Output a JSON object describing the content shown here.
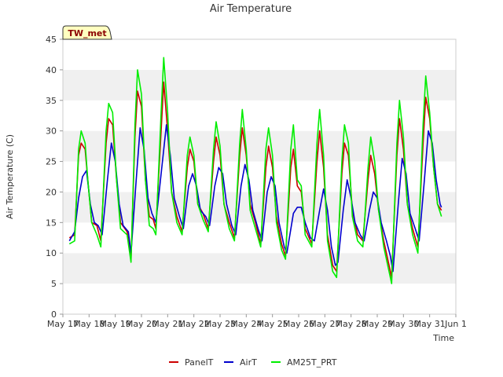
{
  "chart_data": {
    "type": "line",
    "title": "Air Temperature",
    "xlabel": "Time",
    "ylabel": "Air Temperature (C)",
    "tag": "TW_met",
    "ylim": [
      0,
      45
    ],
    "yticks": [
      0,
      5,
      10,
      15,
      20,
      25,
      30,
      35,
      40,
      45
    ],
    "xlim": [
      0,
      15
    ],
    "xticks": [
      {
        "x": 0,
        "label": "May 17"
      },
      {
        "x": 1,
        "label": "May 18"
      },
      {
        "x": 2,
        "label": "May 19"
      },
      {
        "x": 3,
        "label": "May 20"
      },
      {
        "x": 4,
        "label": "May 21"
      },
      {
        "x": 5,
        "label": "May 22"
      },
      {
        "x": 6,
        "label": "May 23"
      },
      {
        "x": 7,
        "label": "May 24"
      },
      {
        "x": 8,
        "label": "May 25"
      },
      {
        "x": 9,
        "label": "May 26"
      },
      {
        "x": 10,
        "label": "May 27"
      },
      {
        "x": 11,
        "label": "May 28"
      },
      {
        "x": 12,
        "label": "May 29"
      },
      {
        "x": 13,
        "label": "May 30"
      },
      {
        "x": 14,
        "label": "May 31"
      },
      {
        "x": 15,
        "label": "Jun 1"
      }
    ],
    "grid": true,
    "legend_position": "bottom",
    "series": [
      {
        "name": "PanelT",
        "color": "#cc0000",
        "points": [
          [
            0.25,
            12.5
          ],
          [
            0.45,
            13.0
          ],
          [
            0.6,
            26.0
          ],
          [
            0.7,
            28.0
          ],
          [
            0.85,
            27.0
          ],
          [
            0.95,
            22.0
          ],
          [
            1.1,
            15.0
          ],
          [
            1.3,
            14.5
          ],
          [
            1.45,
            12.0
          ],
          [
            1.65,
            28.0
          ],
          [
            1.75,
            32.0
          ],
          [
            1.9,
            31.0
          ],
          [
            2.05,
            22.0
          ],
          [
            2.2,
            15.0
          ],
          [
            2.45,
            13.5
          ],
          [
            2.6,
            9.0
          ],
          [
            2.75,
            29.0
          ],
          [
            2.85,
            36.5
          ],
          [
            3.0,
            34.0
          ],
          [
            3.15,
            22.0
          ],
          [
            3.3,
            16.0
          ],
          [
            3.45,
            15.5
          ],
          [
            3.55,
            14.0
          ],
          [
            3.75,
            30.0
          ],
          [
            3.85,
            38.0
          ],
          [
            4.0,
            30.0
          ],
          [
            4.15,
            20.0
          ],
          [
            4.35,
            16.0
          ],
          [
            4.55,
            13.5
          ],
          [
            4.75,
            24.0
          ],
          [
            4.85,
            27.0
          ],
          [
            5.0,
            25.0
          ],
          [
            5.15,
            18.0
          ],
          [
            5.35,
            16.5
          ],
          [
            5.55,
            14.0
          ],
          [
            5.75,
            25.0
          ],
          [
            5.85,
            29.0
          ],
          [
            6.0,
            26.0
          ],
          [
            6.15,
            18.0
          ],
          [
            6.35,
            15.0
          ],
          [
            6.55,
            12.5
          ],
          [
            6.75,
            26.0
          ],
          [
            6.85,
            30.5
          ],
          [
            7.0,
            26.0
          ],
          [
            7.15,
            18.0
          ],
          [
            7.35,
            15.0
          ],
          [
            7.55,
            11.5
          ],
          [
            7.75,
            24.0
          ],
          [
            7.85,
            27.5
          ],
          [
            8.0,
            24.0
          ],
          [
            8.15,
            16.0
          ],
          [
            8.35,
            11.5
          ],
          [
            8.5,
            9.5
          ],
          [
            8.7,
            24.0
          ],
          [
            8.8,
            27.0
          ],
          [
            8.95,
            21.0
          ],
          [
            9.1,
            20.0
          ],
          [
            9.25,
            14.0
          ],
          [
            9.5,
            11.5
          ],
          [
            9.7,
            25.0
          ],
          [
            9.8,
            30.0
          ],
          [
            9.95,
            24.0
          ],
          [
            10.1,
            13.0
          ],
          [
            10.3,
            8.0
          ],
          [
            10.45,
            7.0
          ],
          [
            10.65,
            23.0
          ],
          [
            10.75,
            28.0
          ],
          [
            10.9,
            26.0
          ],
          [
            11.05,
            17.0
          ],
          [
            11.25,
            13.0
          ],
          [
            11.45,
            12.0
          ],
          [
            11.65,
            22.0
          ],
          [
            11.75,
            26.0
          ],
          [
            11.9,
            23.0
          ],
          [
            12.05,
            17.0
          ],
          [
            12.25,
            12.0
          ],
          [
            12.45,
            8.0
          ],
          [
            12.55,
            6.0
          ],
          [
            12.75,
            26.0
          ],
          [
            12.85,
            32.0
          ],
          [
            13.0,
            27.0
          ],
          [
            13.15,
            18.0
          ],
          [
            13.35,
            14.0
          ],
          [
            13.55,
            11.0
          ],
          [
            13.75,
            28.0
          ],
          [
            13.85,
            35.5
          ],
          [
            14.0,
            32.0
          ],
          [
            14.15,
            24.0
          ],
          [
            14.3,
            18.0
          ],
          [
            14.45,
            17.0
          ]
        ]
      },
      {
        "name": "AirT",
        "color": "#0000cc",
        "points": [
          [
            0.25,
            12.0
          ],
          [
            0.45,
            13.5
          ],
          [
            0.6,
            19.0
          ],
          [
            0.75,
            22.5
          ],
          [
            0.9,
            23.5
          ],
          [
            1.05,
            18.0
          ],
          [
            1.2,
            15.0
          ],
          [
            1.35,
            14.5
          ],
          [
            1.5,
            13.0
          ],
          [
            1.7,
            22.0
          ],
          [
            1.85,
            28.0
          ],
          [
            2.0,
            25.0
          ],
          [
            2.15,
            18.0
          ],
          [
            2.3,
            14.5
          ],
          [
            2.5,
            13.5
          ],
          [
            2.6,
            10.0
          ],
          [
            2.8,
            22.0
          ],
          [
            2.95,
            30.5
          ],
          [
            3.1,
            27.0
          ],
          [
            3.25,
            19.0
          ],
          [
            3.4,
            16.5
          ],
          [
            3.55,
            15.0
          ],
          [
            3.8,
            25.0
          ],
          [
            3.95,
            31.0
          ],
          [
            4.1,
            26.0
          ],
          [
            4.25,
            19.0
          ],
          [
            4.45,
            16.0
          ],
          [
            4.6,
            14.0
          ],
          [
            4.8,
            21.0
          ],
          [
            4.95,
            23.0
          ],
          [
            5.1,
            21.0
          ],
          [
            5.25,
            17.0
          ],
          [
            5.45,
            16.0
          ],
          [
            5.6,
            14.5
          ],
          [
            5.8,
            21.0
          ],
          [
            5.95,
            24.0
          ],
          [
            6.1,
            23.0
          ],
          [
            6.25,
            18.0
          ],
          [
            6.45,
            14.5
          ],
          [
            6.6,
            13.0
          ],
          [
            6.8,
            21.0
          ],
          [
            6.95,
            24.5
          ],
          [
            7.1,
            22.0
          ],
          [
            7.25,
            17.0
          ],
          [
            7.45,
            14.0
          ],
          [
            7.6,
            12.0
          ],
          [
            7.8,
            20.0
          ],
          [
            7.95,
            22.5
          ],
          [
            8.1,
            21.0
          ],
          [
            8.25,
            15.0
          ],
          [
            8.45,
            11.0
          ],
          [
            8.55,
            10.0
          ],
          [
            8.8,
            16.5
          ],
          [
            8.95,
            17.5
          ],
          [
            9.1,
            17.5
          ],
          [
            9.25,
            15.0
          ],
          [
            9.45,
            12.5
          ],
          [
            9.6,
            12.0
          ],
          [
            9.8,
            17.0
          ],
          [
            9.95,
            20.5
          ],
          [
            10.1,
            17.0
          ],
          [
            10.25,
            11.0
          ],
          [
            10.4,
            8.0
          ],
          [
            10.5,
            8.5
          ],
          [
            10.7,
            17.0
          ],
          [
            10.85,
            22.0
          ],
          [
            11.0,
            19.0
          ],
          [
            11.15,
            15.0
          ],
          [
            11.35,
            13.0
          ],
          [
            11.5,
            12.0
          ],
          [
            11.7,
            17.0
          ],
          [
            11.85,
            20.0
          ],
          [
            12.0,
            19.0
          ],
          [
            12.15,
            15.0
          ],
          [
            12.35,
            12.0
          ],
          [
            12.5,
            9.5
          ],
          [
            12.6,
            7.0
          ],
          [
            12.8,
            18.0
          ],
          [
            12.95,
            25.5
          ],
          [
            13.1,
            23.0
          ],
          [
            13.25,
            16.5
          ],
          [
            13.45,
            14.0
          ],
          [
            13.6,
            12.0
          ],
          [
            13.8,
            22.0
          ],
          [
            13.95,
            30.0
          ],
          [
            14.1,
            28.0
          ],
          [
            14.25,
            22.0
          ],
          [
            14.4,
            18.0
          ],
          [
            14.45,
            17.5
          ]
        ]
      },
      {
        "name": "AM25T_PRT",
        "color": "#00ee00",
        "points": [
          [
            0.25,
            11.5
          ],
          [
            0.45,
            12.0
          ],
          [
            0.6,
            27.0
          ],
          [
            0.7,
            30.0
          ],
          [
            0.85,
            28.0
          ],
          [
            0.95,
            22.0
          ],
          [
            1.1,
            15.0
          ],
          [
            1.3,
            13.0
          ],
          [
            1.45,
            11.0
          ],
          [
            1.65,
            30.0
          ],
          [
            1.75,
            34.5
          ],
          [
            1.9,
            33.0
          ],
          [
            2.05,
            22.0
          ],
          [
            2.2,
            14.0
          ],
          [
            2.45,
            13.0
          ],
          [
            2.6,
            8.5
          ],
          [
            2.75,
            31.0
          ],
          [
            2.85,
            40.0
          ],
          [
            3.0,
            36.0
          ],
          [
            3.15,
            22.0
          ],
          [
            3.3,
            14.5
          ],
          [
            3.45,
            14.0
          ],
          [
            3.55,
            13.0
          ],
          [
            3.75,
            33.0
          ],
          [
            3.85,
            42.0
          ],
          [
            4.0,
            33.0
          ],
          [
            4.15,
            20.0
          ],
          [
            4.35,
            15.0
          ],
          [
            4.55,
            13.0
          ],
          [
            4.75,
            26.0
          ],
          [
            4.85,
            29.0
          ],
          [
            5.0,
            26.0
          ],
          [
            5.15,
            18.0
          ],
          [
            5.35,
            15.5
          ],
          [
            5.55,
            13.5
          ],
          [
            5.75,
            27.0
          ],
          [
            5.85,
            31.5
          ],
          [
            6.0,
            27.5
          ],
          [
            6.15,
            18.0
          ],
          [
            6.35,
            14.0
          ],
          [
            6.55,
            12.0
          ],
          [
            6.75,
            28.0
          ],
          [
            6.85,
            33.5
          ],
          [
            7.0,
            27.0
          ],
          [
            7.15,
            17.0
          ],
          [
            7.35,
            14.0
          ],
          [
            7.55,
            11.0
          ],
          [
            7.75,
            27.0
          ],
          [
            7.85,
            30.5
          ],
          [
            8.0,
            26.0
          ],
          [
            8.15,
            15.0
          ],
          [
            8.35,
            10.5
          ],
          [
            8.5,
            9.0
          ],
          [
            8.7,
            27.0
          ],
          [
            8.8,
            31.0
          ],
          [
            8.95,
            22.0
          ],
          [
            9.1,
            21.0
          ],
          [
            9.25,
            13.0
          ],
          [
            9.5,
            11.0
          ],
          [
            9.7,
            28.0
          ],
          [
            9.8,
            33.5
          ],
          [
            9.95,
            26.0
          ],
          [
            10.1,
            12.0
          ],
          [
            10.3,
            7.0
          ],
          [
            10.45,
            6.0
          ],
          [
            10.65,
            25.0
          ],
          [
            10.75,
            31.0
          ],
          [
            10.9,
            28.0
          ],
          [
            11.05,
            16.0
          ],
          [
            11.25,
            12.0
          ],
          [
            11.45,
            11.0
          ],
          [
            11.65,
            24.0
          ],
          [
            11.75,
            29.0
          ],
          [
            11.9,
            25.0
          ],
          [
            12.05,
            17.0
          ],
          [
            12.25,
            11.0
          ],
          [
            12.45,
            7.0
          ],
          [
            12.55,
            5.0
          ],
          [
            12.75,
            28.0
          ],
          [
            12.85,
            35.0
          ],
          [
            13.0,
            29.0
          ],
          [
            13.15,
            18.0
          ],
          [
            13.35,
            13.0
          ],
          [
            13.55,
            10.0
          ],
          [
            13.75,
            31.0
          ],
          [
            13.85,
            39.0
          ],
          [
            14.0,
            33.0
          ],
          [
            14.15,
            24.0
          ],
          [
            14.3,
            18.0
          ],
          [
            14.45,
            16.0
          ]
        ]
      }
    ]
  }
}
